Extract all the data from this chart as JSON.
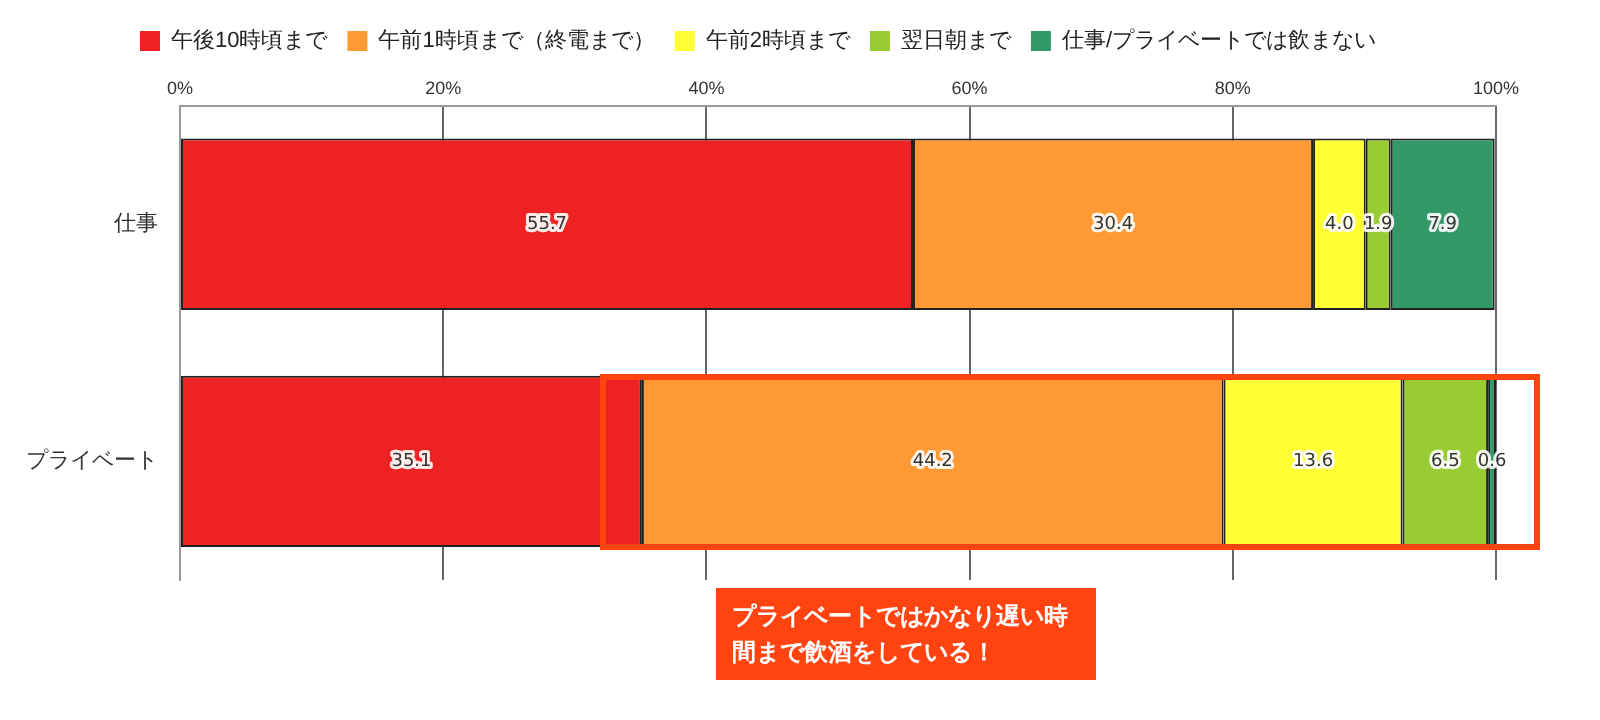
{
  "chart_data": {
    "type": "bar",
    "orientation": "horizontal",
    "stacked": true,
    "categories": [
      "仕事",
      "プライベート"
    ],
    "series": [
      {
        "name": "午後10時頃まで",
        "color": "#ee2222",
        "values": [
          55.7,
          35.1
        ],
        "value_labels": [
          "55.7",
          "35.1"
        ]
      },
      {
        "name": "午前1時頃まで（終電まで）",
        "color": "#ff9933",
        "values": [
          30.4,
          44.2
        ],
        "value_labels": [
          "30.4",
          "44.2"
        ]
      },
      {
        "name": "午前2時頃まで",
        "color": "#ffff33",
        "values": [
          4.0,
          13.6
        ],
        "value_labels": [
          "4.0",
          "13.6"
        ]
      },
      {
        "name": "翌日朝まで",
        "color": "#99cc33",
        "values": [
          1.9,
          6.5
        ],
        "value_labels": [
          "1.9",
          "6.5"
        ]
      },
      {
        "name": "仕事/プライベートでは飲まない",
        "color": "#339966",
        "values": [
          7.9,
          0.6
        ],
        "value_labels": [
          "7.9",
          "0.6"
        ]
      }
    ],
    "xlim": [
      0,
      100
    ],
    "xticks": [
      {
        "value": 0,
        "label": "0%"
      },
      {
        "value": 20,
        "label": "20%"
      },
      {
        "value": 40,
        "label": "40%"
      },
      {
        "value": 60,
        "label": "60%"
      },
      {
        "value": 80,
        "label": "80%"
      },
      {
        "value": 100,
        "label": "100%"
      }
    ],
    "grid": "x",
    "legend": "top",
    "annotations": [
      "プライベートではかなり遅い時間まで飲酒をしている！"
    ]
  }
}
